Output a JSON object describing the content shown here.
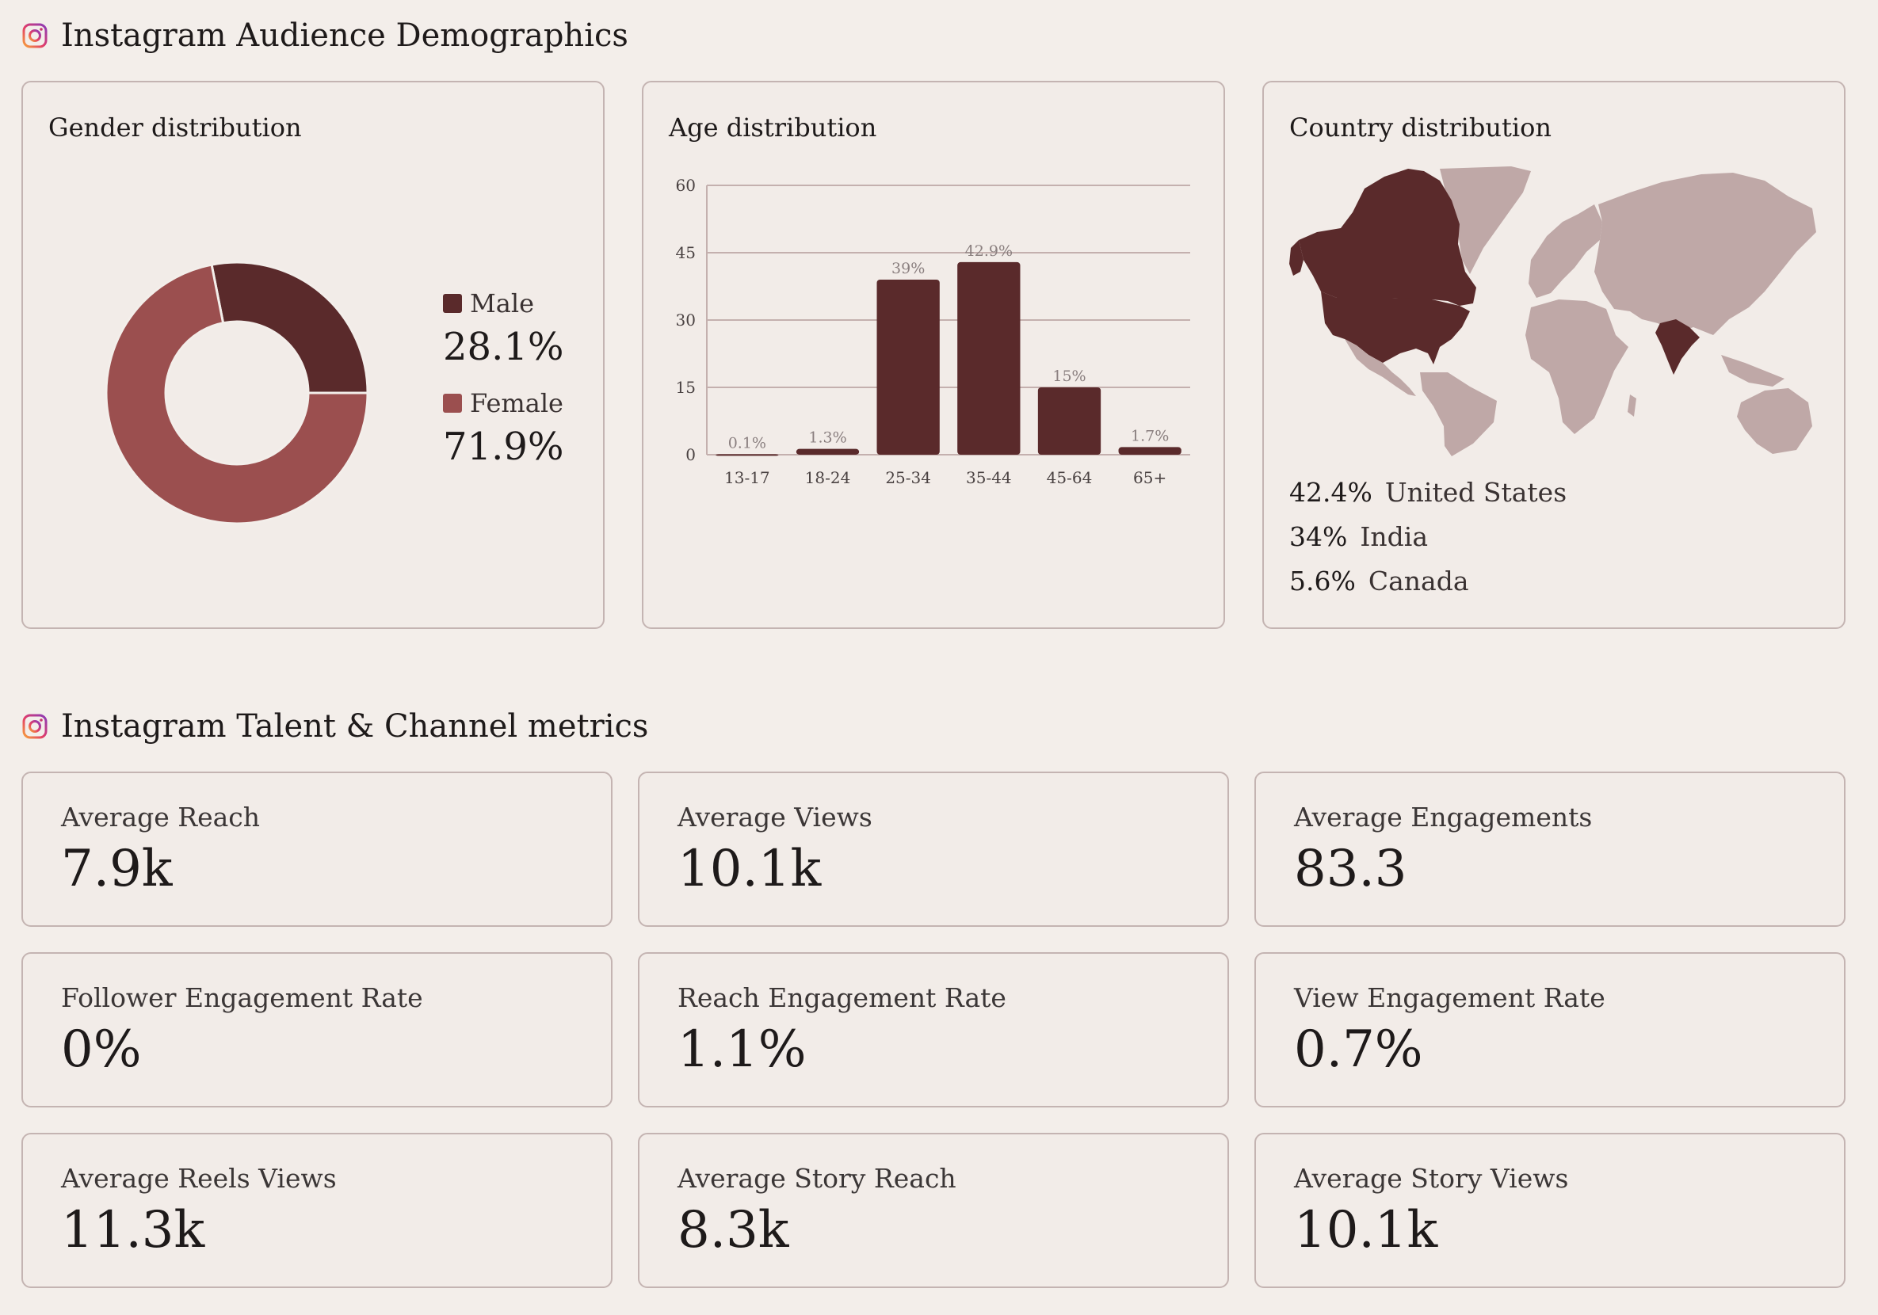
{
  "demographics": {
    "title": "Instagram Audience Demographics",
    "icon": "instagram-icon",
    "gender": {
      "title": "Gender distribution",
      "items": [
        {
          "label": "Male",
          "value": "28.1%",
          "pct": 28.1,
          "color": "#5a2a2b"
        },
        {
          "label": "Female",
          "value": "71.9%",
          "pct": 71.9,
          "color": "#9b4f4f"
        }
      ]
    },
    "age": {
      "title": "Age distribution"
    },
    "country": {
      "title": "Country distribution",
      "items": [
        {
          "value": "42.4%",
          "name": "United States"
        },
        {
          "value": "34%",
          "name": "India"
        },
        {
          "value": "5.6%",
          "name": "Canada"
        }
      ],
      "colors": {
        "highlight": "#5a2a2b",
        "base": "#bfa8a7"
      }
    }
  },
  "chart_data": {
    "type": "bar",
    "categories": [
      "13-17",
      "18-24",
      "25-34",
      "35-44",
      "45-64",
      "65+"
    ],
    "values": [
      0.1,
      1.3,
      39,
      42.9,
      15,
      1.7
    ],
    "labels": [
      "0.1%",
      "1.3%",
      "39%",
      "42.9%",
      "15%",
      "1.7%"
    ],
    "yticks": [
      "0",
      "15",
      "30",
      "45",
      "60"
    ],
    "ylim": [
      0,
      60
    ],
    "grid": true,
    "color": "#5a2a2b"
  },
  "metrics": {
    "title": "Instagram Talent & Channel metrics",
    "icon": "instagram-icon",
    "items": [
      {
        "label": "Average Reach",
        "value": "7.9k"
      },
      {
        "label": "Average Views",
        "value": "10.1k"
      },
      {
        "label": "Average Engagements",
        "value": "83.3"
      },
      {
        "label": "Follower Engagement Rate",
        "value": "0%"
      },
      {
        "label": "Reach Engagement Rate",
        "value": "1.1%"
      },
      {
        "label": "View Engagement Rate",
        "value": "0.7%"
      },
      {
        "label": "Average Reels Views",
        "value": "11.3k"
      },
      {
        "label": "Average Story Reach",
        "value": "8.3k"
      },
      {
        "label": "Average Story Views",
        "value": "10.1k"
      }
    ]
  }
}
